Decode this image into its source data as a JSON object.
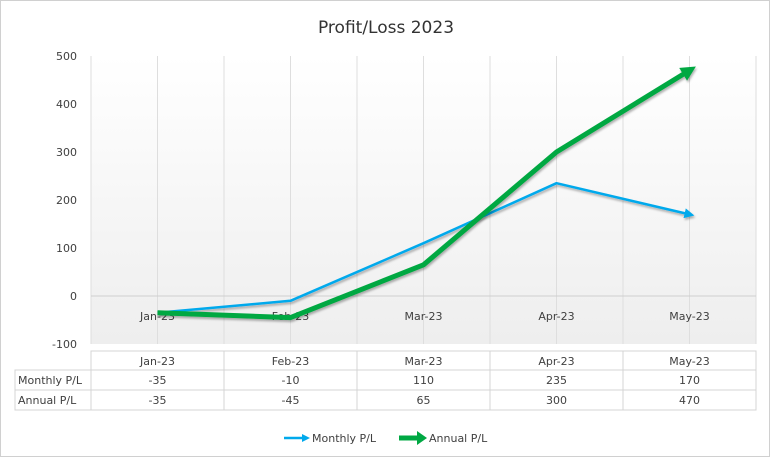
{
  "chart_data": {
    "type": "line",
    "title": "Profit/Loss  2023",
    "categories": [
      "Jan-23",
      "Feb-23",
      "Mar-23",
      "Apr-23",
      "May-23"
    ],
    "series": [
      {
        "name": "Monthly P/L",
        "values": [
          -35,
          -10,
          110,
          235,
          170
        ],
        "color": "#00a9ec"
      },
      {
        "name": "Annual P/L",
        "values": [
          -35,
          -45,
          65,
          300,
          470
        ],
        "color": "#00a843"
      }
    ],
    "yticks": [
      500,
      400,
      300,
      200,
      100,
      0,
      -100
    ],
    "ylim": [
      -100,
      500
    ],
    "grid": true,
    "legend": "bottom",
    "data_table": true
  }
}
